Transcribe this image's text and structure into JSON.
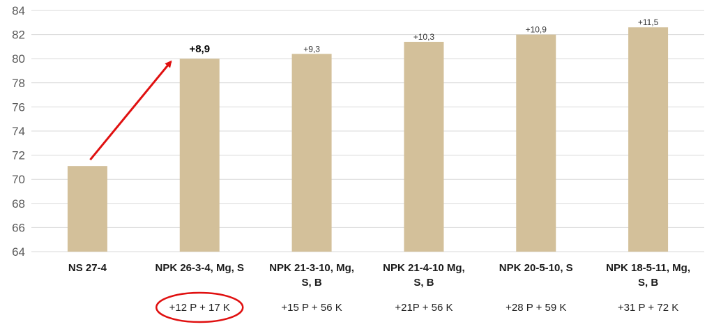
{
  "chart_data": {
    "type": "bar",
    "title": "",
    "xlabel": "",
    "ylabel": "",
    "ylim": [
      64,
      84
    ],
    "yticks": [
      "64",
      "66",
      "68",
      "70",
      "72",
      "74",
      "76",
      "78",
      "80",
      "82",
      "84"
    ],
    "grid": true,
    "categories": [
      [
        "NS 27-4"
      ],
      [
        "NPK 26-3-4, Mg, S"
      ],
      [
        "NPK 21-3-10, Mg,",
        "S, B"
      ],
      [
        "NPK 21-4-10 Mg,",
        "S, B"
      ],
      [
        "NPK 20-5-10, S"
      ],
      [
        "NPK 18-5-11, Mg,",
        "S, B"
      ]
    ],
    "values": [
      71.1,
      80.0,
      80.4,
      81.4,
      82.0,
      82.6
    ],
    "data_labels": [
      "",
      "+8,9",
      "+9,3",
      "+10,3",
      "+10,9",
      "+11,5"
    ],
    "nutrient_labels": [
      "",
      "+12 P + 17 K",
      "+15 P + 56 K",
      "+21P + 56 K",
      "+28 P + 59 K",
      "+31 P + 72 K"
    ],
    "colors": {
      "bar": "#d3c09a",
      "grid": "#d9d9d9",
      "annotation": "#e01010"
    },
    "annotations": {
      "arrow": {
        "from_category": 0,
        "to_category": 1
      },
      "circled_label_index": 1
    }
  }
}
